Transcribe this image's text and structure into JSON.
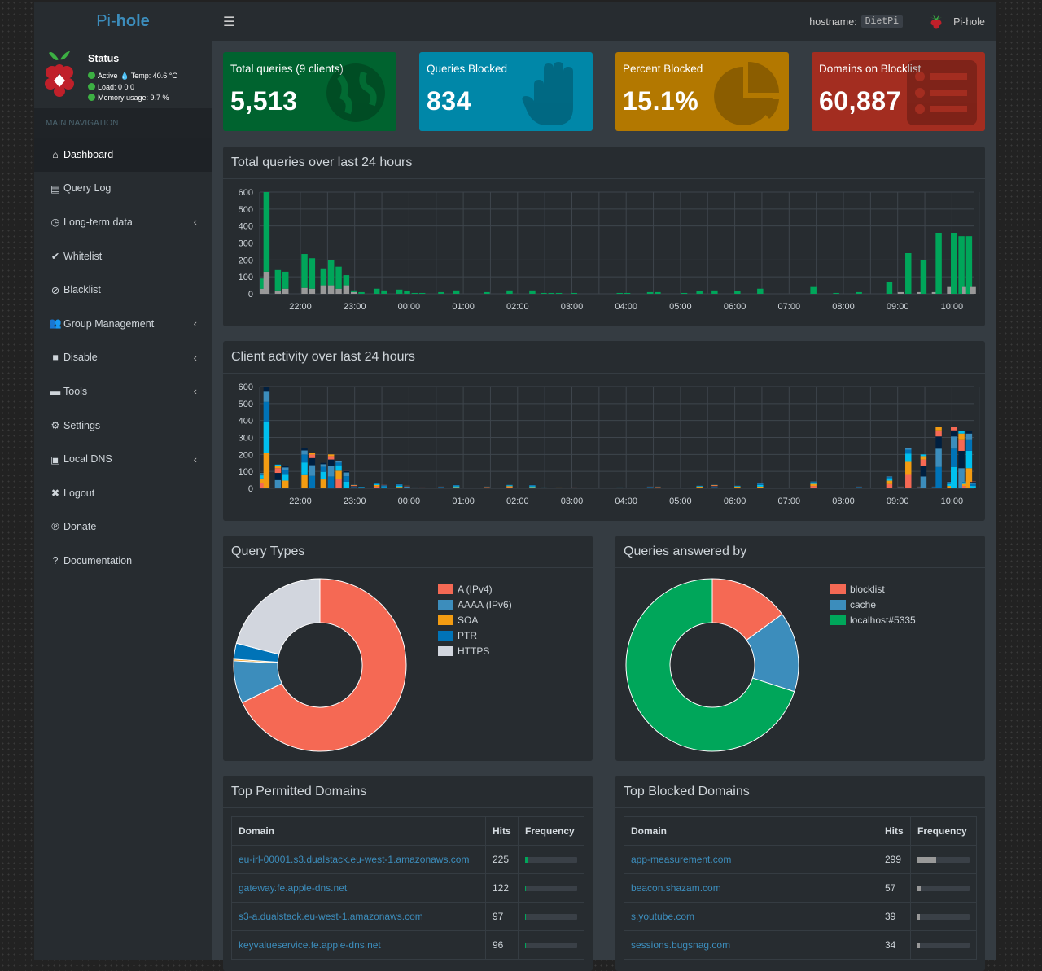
{
  "brand": {
    "pi": "Pi-",
    "hole": "hole"
  },
  "header": {
    "hostname_label": "hostname:",
    "hostname": "DietPi",
    "user": "Pi-hole"
  },
  "status": {
    "title": "Status",
    "active": "Active",
    "temp": "Temp: 40.6 °C",
    "load": "Load:  0  0  0",
    "memory": "Memory usage:  9.7 %"
  },
  "nav": {
    "header": "MAIN NAVIGATION",
    "items": [
      {
        "label": "Dashboard",
        "icon": "home-icon",
        "active": true
      },
      {
        "label": "Query Log",
        "icon": "file-icon"
      },
      {
        "label": "Long-term data",
        "icon": "clock-icon",
        "chevron": true
      },
      {
        "label": "Whitelist",
        "icon": "check-circle-icon"
      },
      {
        "label": "Blacklist",
        "icon": "ban-icon"
      },
      {
        "label": "Group Management",
        "icon": "users-icon",
        "chevron": true
      },
      {
        "label": "Disable",
        "icon": "stop-icon",
        "chevron": true
      },
      {
        "label": "Tools",
        "icon": "folder-icon",
        "chevron": true
      },
      {
        "label": "Settings",
        "icon": "gears-icon"
      },
      {
        "label": "Local DNS",
        "icon": "address-book-icon",
        "chevron": true
      },
      {
        "label": "Logout",
        "icon": "user-times-icon"
      },
      {
        "label": "Donate",
        "icon": "paypal-icon"
      },
      {
        "label": "Documentation",
        "icon": "question-circle-icon"
      }
    ]
  },
  "stats": {
    "total": {
      "label": "Total queries (9 clients)",
      "value": "5,513"
    },
    "blocked": {
      "label": "Queries Blocked",
      "value": "834"
    },
    "percent": {
      "label": "Percent Blocked",
      "value": "15.1%"
    },
    "domains": {
      "label": "Domains on Blocklist",
      "value": "60,887"
    }
  },
  "charts": {
    "queries_title": "Total queries over last 24 hours",
    "clients_title": "Client activity over last 24 hours",
    "query_types_title": "Query Types",
    "answered_title": "Queries answered by"
  },
  "chart_data": [
    {
      "type": "bar",
      "title": "Total queries over last 24 hours",
      "x_tick_labels": [
        "22:00",
        "23:00",
        "00:00",
        "01:00",
        "02:00",
        "03:00",
        "04:00",
        "05:00",
        "06:00",
        "07:00",
        "08:00",
        "09:00",
        "10:00"
      ],
      "y_ticks": [
        0,
        100,
        200,
        300,
        400,
        500,
        600
      ],
      "ylim": [
        0,
        600
      ],
      "series_colors": {
        "permitted": "#00a65a",
        "blocked": "#999999"
      },
      "permitted": [
        60,
        470,
        0,
        0,
        120,
        0,
        100,
        0,
        0,
        0,
        0,
        200,
        0,
        180,
        0,
        0,
        100,
        0,
        150,
        0,
        130,
        0,
        60,
        0,
        10,
        0,
        10,
        0,
        0,
        0,
        30,
        0,
        20,
        0,
        0,
        0,
        25,
        0,
        15,
        0,
        5,
        0,
        5,
        0,
        0,
        0,
        0,
        10,
        0,
        0,
        0,
        20,
        0,
        0,
        0,
        0,
        0,
        0,
        0,
        10,
        0,
        0,
        0,
        0,
        0,
        20,
        0,
        0,
        0,
        0,
        0,
        20,
        0,
        0,
        5,
        0,
        5,
        0,
        5,
        0,
        0,
        0,
        5,
        0,
        0,
        0,
        0,
        0,
        0,
        0,
        0,
        0,
        0,
        0,
        5,
        0,
        5,
        0,
        0,
        0,
        0,
        0,
        10,
        0,
        10,
        0,
        0,
        0,
        0,
        0,
        0,
        5,
        0,
        0,
        0,
        15,
        0,
        0,
        0,
        20,
        0,
        0,
        0,
        0,
        0,
        15,
        0,
        0,
        0,
        0,
        0,
        30,
        0,
        0,
        0,
        0,
        0,
        0,
        0,
        0,
        0,
        0,
        0,
        0,
        0,
        40,
        0,
        0,
        0,
        0,
        0,
        5,
        0,
        0,
        0,
        0,
        0,
        10,
        0,
        0,
        0,
        0,
        0,
        0,
        0,
        70,
        0,
        0,
        0,
        0,
        240,
        0,
        0,
        0,
        200,
        0,
        0,
        0,
        360,
        0,
        0,
        0,
        360,
        0,
        340,
        0,
        340,
        0
      ],
      "blocked": [
        30,
        130,
        0,
        0,
        20,
        0,
        30,
        0,
        0,
        0,
        0,
        35,
        0,
        30,
        0,
        0,
        50,
        0,
        50,
        0,
        30,
        0,
        50,
        0,
        10,
        0,
        0,
        0,
        0,
        0,
        0,
        0,
        0,
        0,
        0,
        0,
        0,
        0,
        0,
        0,
        0,
        0,
        0,
        0,
        0,
        0,
        0,
        0,
        0,
        0,
        0,
        0,
        0,
        0,
        0,
        0,
        0,
        0,
        0,
        0,
        0,
        0,
        0,
        0,
        0,
        0,
        0,
        0,
        0,
        0,
        0,
        0,
        0,
        0,
        0,
        0,
        0,
        0,
        0,
        0,
        0,
        0,
        0,
        0,
        0,
        0,
        0,
        0,
        0,
        0,
        0,
        0,
        0,
        0,
        0,
        0,
        0,
        0,
        0,
        0,
        0,
        0,
        0,
        0,
        0,
        0,
        0,
        0,
        0,
        0,
        0,
        0,
        0,
        0,
        0,
        0,
        0,
        0,
        0,
        0,
        0,
        0,
        0,
        0,
        0,
        0,
        0,
        0,
        0,
        0,
        0,
        0,
        0,
        0,
        0,
        0,
        0,
        0,
        0,
        0,
        0,
        0,
        0,
        0,
        0,
        0,
        0,
        0,
        0,
        0,
        0,
        0,
        0,
        0,
        0,
        0,
        0,
        0,
        0,
        0,
        0,
        0,
        0,
        0,
        0,
        0,
        0,
        0,
        10,
        0,
        0,
        0,
        0,
        10,
        0,
        0,
        0,
        10,
        0,
        0,
        0,
        40,
        0,
        0,
        0,
        40,
        0,
        40,
        0,
        30,
        0
      ]
    },
    {
      "type": "bar",
      "title": "Client activity over last 24 hours",
      "x_tick_labels": [
        "22:00",
        "23:00",
        "00:00",
        "01:00",
        "02:00",
        "03:00",
        "04:00",
        "05:00",
        "06:00",
        "07:00",
        "08:00",
        "09:00",
        "10:00"
      ],
      "y_ticks": [
        0,
        100,
        200,
        300,
        400,
        500,
        600
      ],
      "ylim": [
        0,
        600
      ],
      "colors": [
        "#f56954",
        "#f39c12",
        "#00c0ef",
        "#0073b7",
        "#3c8dbc",
        "#001f3f"
      ]
    },
    {
      "type": "pie",
      "title": "Query Types",
      "labels": [
        "A (IPv4)",
        "AAAA (IPv6)",
        "SOA",
        "PTR",
        "HTTPS"
      ],
      "values": [
        68,
        8,
        0.3,
        3,
        21
      ],
      "colors": [
        "#f56954",
        "#3c8dbc",
        "#f39c12",
        "#0073b7",
        "#d2d6de"
      ]
    },
    {
      "type": "pie",
      "title": "Queries answered by",
      "labels": [
        "blocklist",
        "cache",
        "localhost#5335"
      ],
      "values": [
        15,
        15,
        70
      ],
      "colors": [
        "#f56954",
        "#3c8dbc",
        "#00a65a"
      ]
    }
  ],
  "top_permitted": {
    "title": "Top Permitted Domains",
    "headers": [
      "Domain",
      "Hits",
      "Frequency"
    ],
    "rows": [
      {
        "domain": "eu-irl-00001.s3.dualstack.eu-west-1.amazonaws.com",
        "hits": "225",
        "freq": 0.04
      },
      {
        "domain": "gateway.fe.apple-dns.net",
        "hits": "122",
        "freq": 0.022
      },
      {
        "domain": "s3-a.dualstack.eu-west-1.amazonaws.com",
        "hits": "97",
        "freq": 0.018
      },
      {
        "domain": "keyvalueservice.fe.apple-dns.net",
        "hits": "96",
        "freq": 0.017
      }
    ]
  },
  "top_blocked": {
    "title": "Top Blocked Domains",
    "headers": [
      "Domain",
      "Hits",
      "Frequency"
    ],
    "rows": [
      {
        "domain": "app-measurement.com",
        "hits": "299",
        "freq": 0.36
      },
      {
        "domain": "beacon.shazam.com",
        "hits": "57",
        "freq": 0.068
      },
      {
        "domain": "s.youtube.com",
        "hits": "39",
        "freq": 0.047
      },
      {
        "domain": "sessions.bugsnag.com",
        "hits": "34",
        "freq": 0.041
      }
    ]
  }
}
